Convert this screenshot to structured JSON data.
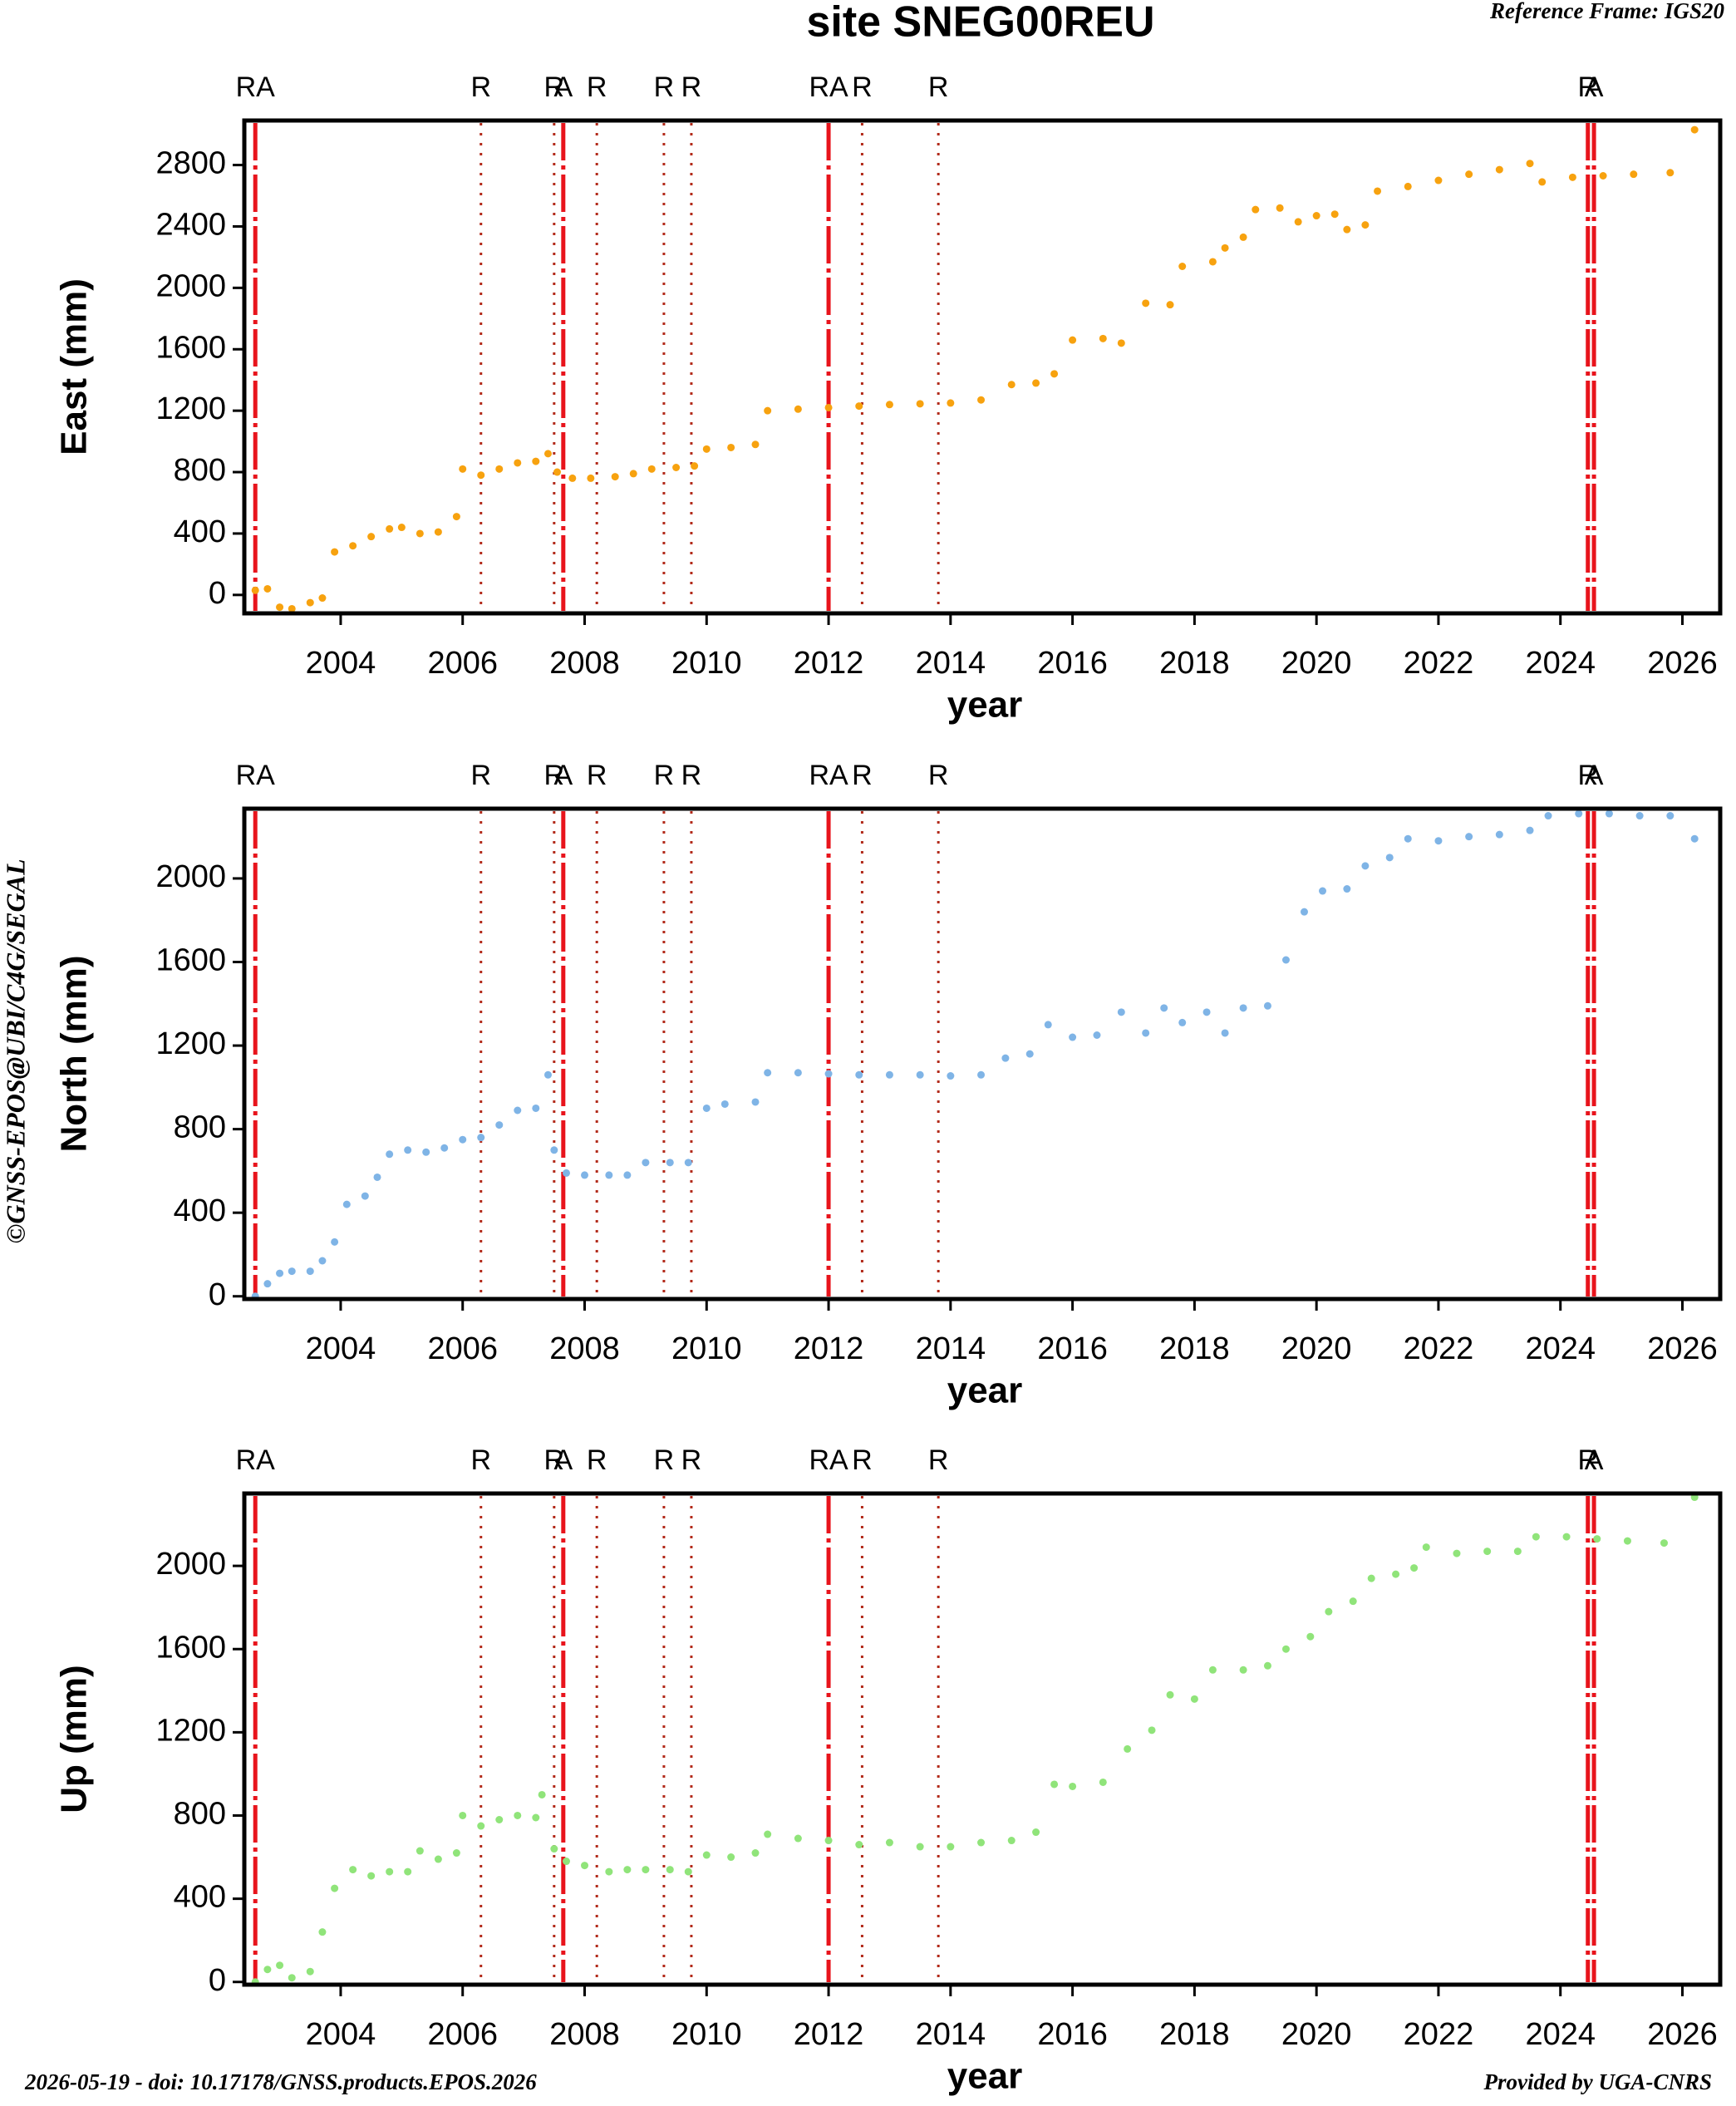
{
  "title": "site SNEG00REU",
  "reference_frame": "Reference Frame: IGS20",
  "copyright": "©GNSS-EPOS@UBI/C4G/SEGAL",
  "footer_left": "2026-05-19 - doi: 10.17178/GNSS.products.EPOS.2026",
  "footer_right": "Provided by UGA-CNRS",
  "events": [
    {
      "x": 2002.6,
      "label": "RA",
      "style": "dashed"
    },
    {
      "x": 2006.3,
      "label": "R",
      "style": "dotted"
    },
    {
      "x": 2007.5,
      "label": "R",
      "style": "dotted"
    },
    {
      "x": 2007.65,
      "label": "A",
      "style": "dashed"
    },
    {
      "x": 2008.2,
      "label": "R",
      "style": "dotted"
    },
    {
      "x": 2009.3,
      "label": "R",
      "style": "dotted"
    },
    {
      "x": 2009.75,
      "label": "R",
      "style": "dotted"
    },
    {
      "x": 2012.0,
      "label": "RA",
      "style": "dashed"
    },
    {
      "x": 2012.55,
      "label": "R",
      "style": "dotted"
    },
    {
      "x": 2013.8,
      "label": "R",
      "style": "dotted"
    },
    {
      "x": 2024.45,
      "label": "R",
      "style": "dashed"
    },
    {
      "x": 2024.55,
      "label": "A",
      "style": "dashed"
    }
  ],
  "chart_data": [
    {
      "type": "scatter",
      "ylabel": "East (mm)",
      "xlabel": "year",
      "color": "#f7a20f",
      "xlim": [
        2002.42,
        2026.62
      ],
      "xticks": [
        2004,
        2006,
        2008,
        2010,
        2012,
        2014,
        2016,
        2018,
        2020,
        2022,
        2024,
        2026
      ],
      "ylim": [
        -120,
        3090
      ],
      "yticks": [
        0,
        400,
        800,
        1200,
        1600,
        2000,
        2400,
        2800
      ],
      "x": [
        2002.6,
        2002.8,
        2003.0,
        2003.2,
        2003.5,
        2003.7,
        2003.9,
        2004.2,
        2004.5,
        2004.8,
        2005.0,
        2005.3,
        2005.6,
        2005.9,
        2006.0,
        2006.3,
        2006.6,
        2006.9,
        2007.2,
        2007.4,
        2007.55,
        2007.8,
        2008.1,
        2008.5,
        2008.8,
        2009.1,
        2009.5,
        2009.8,
        2010.0,
        2010.4,
        2010.8,
        2011.0,
        2011.5,
        2012.0,
        2012.5,
        2013.0,
        2013.5,
        2014.0,
        2014.5,
        2015.0,
        2015.4,
        2015.7,
        2016.0,
        2016.5,
        2016.8,
        2017.2,
        2017.6,
        2017.8,
        2018.3,
        2018.5,
        2018.8,
        2019.0,
        2019.4,
        2019.7,
        2020.0,
        2020.3,
        2020.5,
        2020.8,
        2021.0,
        2021.5,
        2022.0,
        2022.5,
        2023.0,
        2023.5,
        2023.7,
        2024.2,
        2024.7,
        2025.2,
        2025.8,
        2026.2
      ],
      "values": [
        30,
        40,
        -80,
        -90,
        -50,
        -20,
        280,
        320,
        380,
        430,
        440,
        400,
        410,
        510,
        820,
        780,
        820,
        860,
        870,
        920,
        800,
        760,
        760,
        770,
        790,
        820,
        830,
        840,
        950,
        960,
        980,
        1200,
        1210,
        1220,
        1230,
        1240,
        1245,
        1250,
        1270,
        1370,
        1380,
        1440,
        1660,
        1670,
        1640,
        1900,
        1890,
        2140,
        2170,
        2260,
        2330,
        2510,
        2520,
        2430,
        2470,
        2480,
        2380,
        2410,
        2630,
        2660,
        2700,
        2740,
        2770,
        2810,
        2690,
        2720,
        2730,
        2740,
        2750,
        3030
      ]
    },
    {
      "type": "scatter",
      "ylabel": "North (mm)",
      "xlabel": "year",
      "color": "#7fb4e6",
      "xlim": [
        2002.42,
        2026.62
      ],
      "xticks": [
        2004,
        2006,
        2008,
        2010,
        2012,
        2014,
        2016,
        2018,
        2020,
        2022,
        2024,
        2026
      ],
      "ylim": [
        -13,
        2334
      ],
      "yticks": [
        0,
        400,
        800,
        1200,
        1600,
        2000
      ],
      "x": [
        2002.6,
        2002.8,
        2003.0,
        2003.2,
        2003.5,
        2003.7,
        2003.9,
        2004.1,
        2004.4,
        2004.6,
        2004.8,
        2005.1,
        2005.4,
        2005.7,
        2006.0,
        2006.3,
        2006.6,
        2006.9,
        2007.2,
        2007.4,
        2007.5,
        2007.7,
        2008.0,
        2008.4,
        2008.7,
        2009.0,
        2009.4,
        2009.7,
        2010.0,
        2010.3,
        2010.8,
        2011.0,
        2011.5,
        2012.0,
        2012.5,
        2013.0,
        2013.5,
        2014.0,
        2014.5,
        2014.9,
        2015.3,
        2015.6,
        2016.0,
        2016.4,
        2016.8,
        2017.2,
        2017.5,
        2017.8,
        2018.2,
        2018.5,
        2018.8,
        2019.2,
        2019.5,
        2019.8,
        2020.1,
        2020.5,
        2020.8,
        2021.2,
        2021.5,
        2022.0,
        2022.5,
        2023.0,
        2023.5,
        2023.8,
        2024.3,
        2024.8,
        2025.3,
        2025.8,
        2026.2
      ],
      "values": [
        0,
        60,
        110,
        120,
        120,
        170,
        260,
        440,
        480,
        570,
        680,
        700,
        690,
        710,
        750,
        760,
        820,
        890,
        900,
        1060,
        700,
        590,
        580,
        580,
        580,
        640,
        640,
        640,
        900,
        920,
        930,
        1070,
        1070,
        1065,
        1060,
        1060,
        1060,
        1055,
        1060,
        1140,
        1160,
        1300,
        1240,
        1250,
        1360,
        1260,
        1380,
        1310,
        1360,
        1260,
        1380,
        1390,
        1610,
        1840,
        1940,
        1950,
        2060,
        2100,
        2190,
        2180,
        2200,
        2210,
        2230,
        2300,
        2310,
        2310,
        2300,
        2300,
        2190
      ]
    },
    {
      "type": "scatter",
      "ylabel": "Up (mm)",
      "xlabel": "year",
      "color": "#90e47a",
      "xlim": [
        2002.42,
        2026.62
      ],
      "xticks": [
        2004,
        2006,
        2008,
        2010,
        2012,
        2014,
        2016,
        2018,
        2020,
        2022,
        2024,
        2026
      ],
      "ylim": [
        -13,
        2348
      ],
      "yticks": [
        0,
        400,
        800,
        1200,
        1600,
        2000
      ],
      "x": [
        2002.6,
        2002.8,
        2003.0,
        2003.2,
        2003.5,
        2003.7,
        2003.9,
        2004.2,
        2004.5,
        2004.8,
        2005.1,
        2005.3,
        2005.6,
        2005.9,
        2006.0,
        2006.3,
        2006.6,
        2006.9,
        2007.2,
        2007.3,
        2007.5,
        2007.7,
        2008.0,
        2008.4,
        2008.7,
        2009.0,
        2009.4,
        2009.7,
        2010.0,
        2010.4,
        2010.8,
        2011.0,
        2011.5,
        2012.0,
        2012.5,
        2013.0,
        2013.5,
        2014.0,
        2014.5,
        2015.0,
        2015.4,
        2015.7,
        2016.0,
        2016.5,
        2016.9,
        2017.3,
        2017.6,
        2018.0,
        2018.3,
        2018.8,
        2019.2,
        2019.5,
        2019.9,
        2020.2,
        2020.6,
        2020.9,
        2021.3,
        2021.6,
        2021.8,
        2022.3,
        2022.8,
        2023.3,
        2023.6,
        2024.1,
        2024.6,
        2025.1,
        2025.7,
        2026.2
      ],
      "values": [
        0,
        60,
        80,
        20,
        50,
        240,
        450,
        540,
        510,
        530,
        530,
        630,
        590,
        620,
        800,
        750,
        780,
        800,
        790,
        900,
        640,
        580,
        560,
        530,
        540,
        540,
        540,
        530,
        610,
        600,
        620,
        710,
        690,
        680,
        660,
        670,
        650,
        650,
        670,
        680,
        720,
        950,
        940,
        960,
        1120,
        1210,
        1380,
        1360,
        1500,
        1500,
        1520,
        1600,
        1660,
        1780,
        1830,
        1940,
        1960,
        1990,
        2090,
        2060,
        2070,
        2070,
        2140,
        2140,
        2130,
        2120,
        2110,
        2330
      ]
    }
  ]
}
